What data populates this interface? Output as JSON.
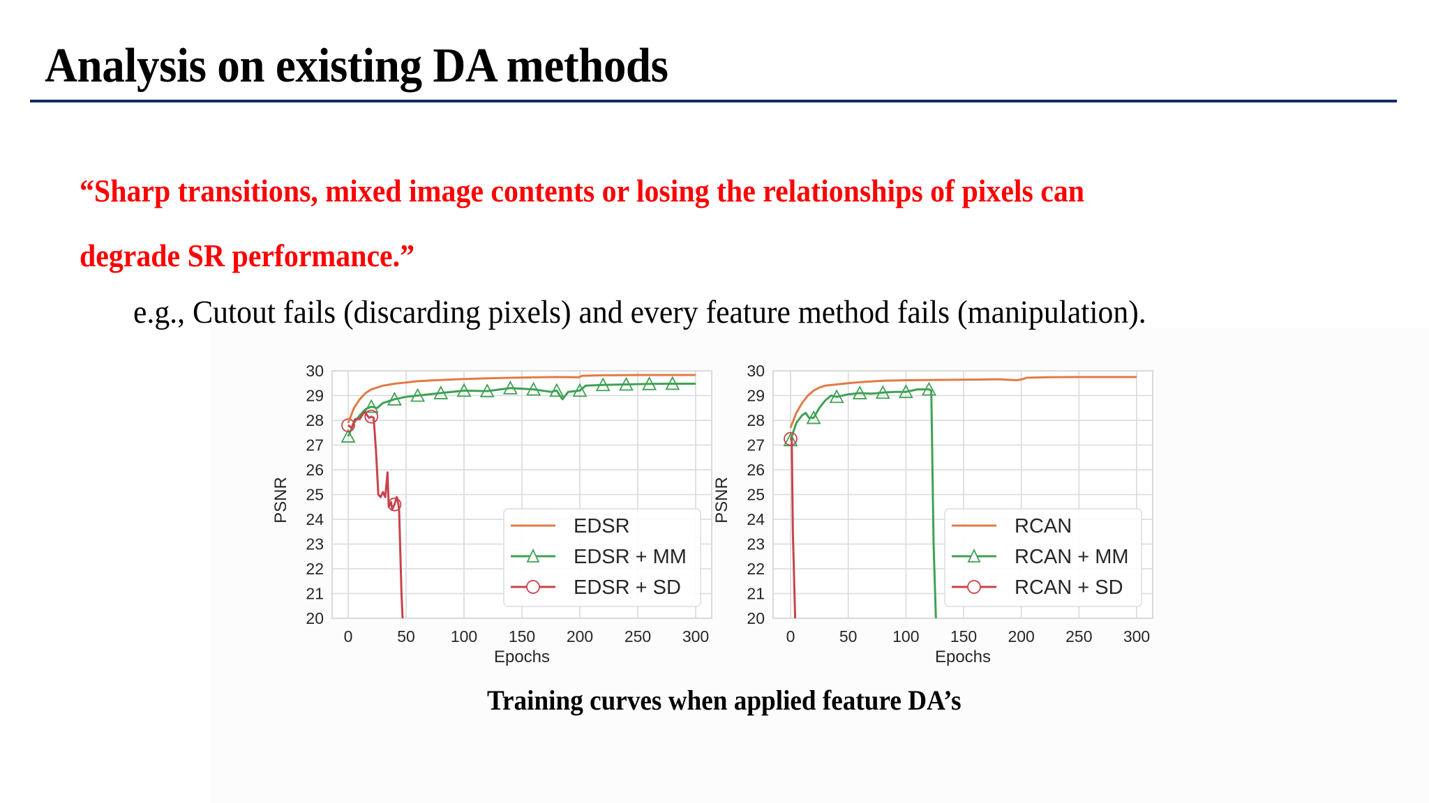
{
  "slide": {
    "title": "Analysis on existing DA methods",
    "title_rule_color": "#12295e",
    "quote_lines": [
      "“Sharp transitions, mixed image contents or losing the relationships of pixels can",
      "degrade SR performance.”"
    ],
    "quote_color": "#ff0000",
    "example_text": "e.g., Cutout fails (discarding pixels) and every feature method fails (manipulation).",
    "caption": "Training curves when applied feature DA’s"
  },
  "colors": {
    "baseline": "#e07b44",
    "mm": "#3fa153",
    "sd": "#c9424a",
    "grid": "#d9d9de",
    "text": "#262626"
  },
  "chart_data": [
    {
      "type": "line",
      "id": "left",
      "title": "",
      "xlabel": "Epochs",
      "ylabel": "PSNR",
      "xlim": [
        0,
        300
      ],
      "ylim": [
        20,
        30
      ],
      "xticks": [
        0,
        50,
        100,
        150,
        200,
        250,
        300
      ],
      "yticks": [
        20,
        21,
        22,
        23,
        24,
        25,
        26,
        27,
        28,
        29,
        30
      ],
      "grid": true,
      "legend_position": "lower right",
      "series": [
        {
          "name": "EDSR",
          "color_key": "baseline",
          "marker": "none",
          "x": [
            0,
            5,
            10,
            15,
            20,
            30,
            40,
            50,
            60,
            80,
            100,
            120,
            150,
            180,
            199,
            202,
            220,
            250,
            280,
            300
          ],
          "y": [
            27.9,
            28.5,
            28.85,
            29.1,
            29.25,
            29.4,
            29.48,
            29.53,
            29.58,
            29.63,
            29.67,
            29.7,
            29.73,
            29.75,
            29.74,
            29.8,
            29.82,
            29.83,
            29.83,
            29.83
          ]
        },
        {
          "name": "EDSR + MM",
          "color_key": "mm",
          "marker": "triangle",
          "x": [
            0,
            5,
            10,
            15,
            20,
            25,
            30,
            40,
            50,
            60,
            80,
            100,
            120,
            140,
            160,
            175,
            180,
            185,
            190,
            200,
            205,
            220,
            240,
            260,
            280,
            300
          ],
          "y": [
            27.35,
            27.9,
            28.2,
            28.45,
            28.55,
            28.5,
            28.7,
            28.85,
            28.95,
            29.0,
            29.1,
            29.2,
            29.18,
            29.3,
            29.25,
            29.15,
            29.2,
            28.85,
            29.15,
            29.2,
            29.4,
            29.43,
            29.45,
            29.47,
            29.48,
            29.48
          ],
          "marker_x": [
            0,
            20,
            40,
            60,
            80,
            100,
            120,
            140,
            160,
            180,
            200,
            220,
            240,
            260,
            280
          ]
        },
        {
          "name": "EDSR + SD",
          "color_key": "sd",
          "marker": "circle",
          "x": [
            0,
            3,
            6,
            10,
            14,
            18,
            20,
            22,
            24,
            26,
            28,
            30,
            32,
            34,
            35,
            37,
            38,
            40,
            42,
            43,
            44,
            46,
            47
          ],
          "y": [
            27.8,
            27.7,
            28.05,
            28.05,
            28.35,
            28.1,
            28.15,
            28.1,
            26.8,
            25.0,
            24.9,
            25.1,
            24.9,
            25.9,
            24.5,
            24.7,
            24.4,
            24.6,
            24.9,
            24.7,
            24.4,
            21.0,
            20.0
          ],
          "marker_x": [
            0,
            20,
            40
          ]
        }
      ]
    },
    {
      "type": "line",
      "id": "right",
      "title": "",
      "xlabel": "Epochs",
      "ylabel": "PSNR",
      "xlim": [
        0,
        300
      ],
      "ylim": [
        20,
        30
      ],
      "xticks": [
        0,
        50,
        100,
        150,
        200,
        250,
        300
      ],
      "yticks": [
        20,
        21,
        22,
        23,
        24,
        25,
        26,
        27,
        28,
        29,
        30
      ],
      "grid": true,
      "legend_position": "lower right",
      "series": [
        {
          "name": "RCAN",
          "color_key": "baseline",
          "marker": "none",
          "x": [
            0,
            5,
            10,
            15,
            20,
            25,
            30,
            40,
            50,
            60,
            80,
            100,
            120,
            150,
            180,
            196,
            200,
            205,
            220,
            250,
            280,
            300
          ],
          "y": [
            27.7,
            28.3,
            28.7,
            29.0,
            29.2,
            29.32,
            29.4,
            29.45,
            29.5,
            29.54,
            29.6,
            29.62,
            29.63,
            29.64,
            29.66,
            29.62,
            29.65,
            29.72,
            29.74,
            29.75,
            29.75,
            29.75
          ]
        },
        {
          "name": "RCAN + MM",
          "color_key": "mm",
          "marker": "triangle",
          "x": [
            0,
            5,
            10,
            13,
            16,
            20,
            25,
            30,
            35,
            40,
            50,
            60,
            70,
            80,
            90,
            100,
            110,
            120,
            122,
            123,
            124,
            126
          ],
          "y": [
            27.2,
            27.9,
            28.2,
            28.3,
            28.1,
            28.1,
            28.5,
            28.8,
            29.0,
            28.95,
            29.05,
            29.1,
            29.08,
            29.12,
            29.15,
            29.15,
            29.25,
            29.25,
            29.2,
            26.0,
            23.0,
            20.0
          ],
          "marker_x": [
            0,
            20,
            40,
            60,
            80,
            100,
            120
          ]
        },
        {
          "name": "RCAN + SD",
          "color_key": "sd",
          "marker": "circle",
          "x": [
            0,
            1,
            2,
            4
          ],
          "y": [
            27.25,
            27.3,
            23.5,
            20.0
          ],
          "marker_x": [
            0
          ]
        }
      ]
    }
  ]
}
